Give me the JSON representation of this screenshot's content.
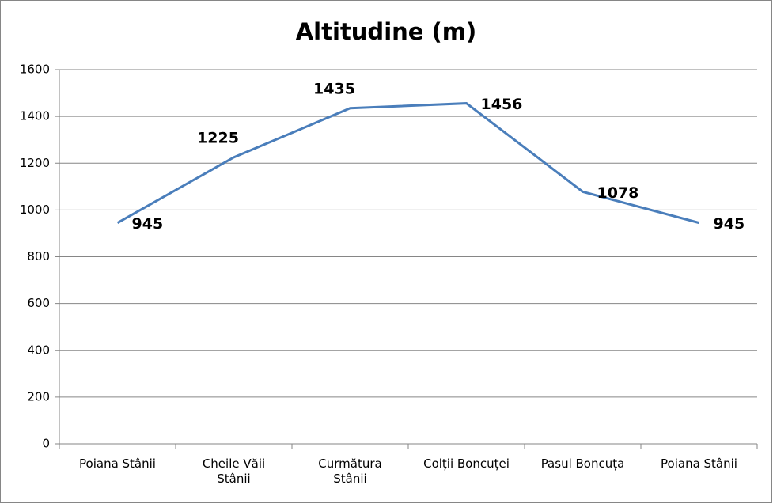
{
  "chart_data": {
    "type": "line",
    "title": "Altitudine (m)",
    "categories": [
      "Poiana Stânii",
      "Cheile Văii Stânii",
      "Curmătura Stânii",
      "Colții Boncuței",
      "Pasul Boncuța",
      "Poiana Stânii"
    ],
    "values": [
      945,
      1225,
      1435,
      1456,
      1078,
      945
    ],
    "color": "#4a7ebb",
    "ylim": [
      0,
      1600
    ],
    "yticks": [
      0,
      200,
      400,
      600,
      800,
      1000,
      1200,
      1400,
      1600
    ],
    "grid": true
  }
}
